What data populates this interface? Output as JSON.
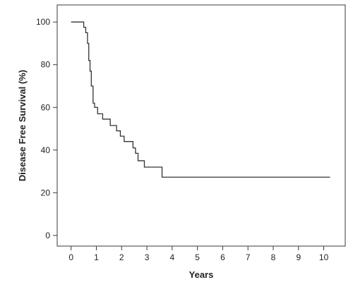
{
  "chart_data": {
    "type": "line",
    "title": "",
    "xlabel": "Years",
    "ylabel": "Disease Free Survival (%)",
    "xlim": [
      -0.55,
      10.85
    ],
    "ylim": [
      -5,
      108
    ],
    "xticks": [
      0,
      1,
      2,
      3,
      4,
      5,
      6,
      7,
      8,
      9,
      10
    ],
    "yticks": [
      0,
      20,
      40,
      60,
      80,
      100
    ],
    "grid": false,
    "legend": "none",
    "line_color": "#333333",
    "series": [
      {
        "step": true,
        "x": [
          0.0,
          0.5,
          0.58,
          0.65,
          0.7,
          0.75,
          0.8,
          0.87,
          0.93,
          1.05,
          1.25,
          1.55,
          1.8,
          1.95,
          2.1,
          2.45,
          2.55,
          2.65,
          2.9,
          3.6,
          10.25
        ],
        "y": [
          100,
          97.5,
          95,
          90,
          82,
          77,
          70,
          62,
          60,
          57,
          54.5,
          51.5,
          49,
          46.5,
          44,
          41,
          38.5,
          35,
          32,
          27.3,
          27.3
        ]
      }
    ]
  }
}
